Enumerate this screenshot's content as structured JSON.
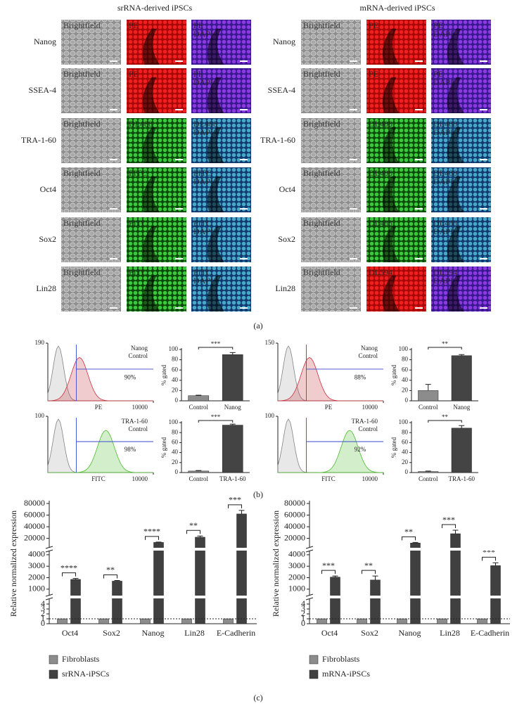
{
  "panel_a": {
    "label": "(a)",
    "groups": [
      {
        "title": "srRNA-derived iPSCs",
        "rows": [
          {
            "marker": "Nanog",
            "cells": [
              [
                "Brightfield"
              ],
              [
                "PE"
              ],
              [
                "PE",
                "DAPI"
              ]
            ]
          },
          {
            "marker": "SSEA-4",
            "cells": [
              [
                "Brightfield"
              ],
              [
                "PE"
              ],
              [
                "PE",
                "DAPI"
              ]
            ]
          },
          {
            "marker": "TRA-1-60",
            "cells": [
              [
                "Brightfield"
              ],
              [
                "DL488"
              ],
              [
                "DL488",
                "DAPI"
              ]
            ]
          },
          {
            "marker": "Oct4",
            "cells": [
              [
                "Brightfield"
              ],
              [
                "FITC"
              ],
              [
                "FITC",
                "DAPI"
              ]
            ]
          },
          {
            "marker": "Sox2",
            "cells": [
              [
                "Brightfield"
              ],
              [
                "FITC"
              ],
              [
                "FITC",
                "DAPI"
              ]
            ]
          },
          {
            "marker": "Lin28",
            "cells": [
              [
                "Brightfield"
              ],
              [
                "FITC"
              ],
              [
                "FITC",
                "DAPI"
              ]
            ]
          }
        ]
      },
      {
        "title": "mRNA-derived iPSCs",
        "rows": [
          {
            "marker": "Nanog",
            "cells": [
              [
                "Brightfield"
              ],
              [
                "PE"
              ],
              [
                "PE",
                "DAPI"
              ]
            ]
          },
          {
            "marker": "SSEA-4",
            "cells": [
              [
                "Brightfield"
              ],
              [
                "PE"
              ],
              [
                "PE",
                "DAPI"
              ]
            ]
          },
          {
            "marker": "TRA-1-60",
            "cells": [
              [
                "Brightfield"
              ],
              [
                "DL488"
              ],
              [
                "DL488",
                "DAPI"
              ]
            ]
          },
          {
            "marker": "Oct4",
            "cells": [
              [
                "Brightfield"
              ],
              [
                "DL488"
              ],
              [
                "DL488",
                "DAPI"
              ]
            ]
          },
          {
            "marker": "Sox2",
            "cells": [
              [
                "Brightfield"
              ],
              [
                "DL488"
              ],
              [
                "DL488",
                "DAPI"
              ]
            ]
          },
          {
            "marker": "Lin28",
            "cells": [
              [
                "Brightfield"
              ],
              [
                "DL594"
              ],
              [
                "DL594",
                "DAPI"
              ]
            ]
          }
        ]
      }
    ]
  },
  "panel_b": {
    "label": "(b)",
    "charts": [
      {
        "type": "histogram",
        "series": [
          {
            "name": "Nanog",
            "color": "#c8323c"
          },
          {
            "name": "Control",
            "color": "#777777"
          }
        ],
        "gated": "90%",
        "xlabel": "PE",
        "ylim": [
          0,
          190
        ],
        "yticks": [
          190
        ],
        "xlim": [
          1,
          10000
        ],
        "xticks": [
          10000
        ],
        "log_x": true
      },
      {
        "type": "bar",
        "categories": [
          "Control",
          "Nanog"
        ],
        "values": [
          10,
          90
        ],
        "errors": [
          1,
          4
        ],
        "colors": [
          "#8c8c8c",
          "#444444"
        ],
        "ylabel": "% gated",
        "ylim": [
          0,
          100
        ],
        "yticks": [
          0,
          20,
          40,
          60,
          80,
          100
        ],
        "significance": "***"
      },
      {
        "type": "histogram",
        "series": [
          {
            "name": "Nanog",
            "color": "#c8323c"
          },
          {
            "name": "Control",
            "color": "#777777"
          }
        ],
        "gated": "88%",
        "xlabel": "PE",
        "ylim": [
          0,
          150
        ],
        "yticks": [
          150
        ],
        "xlim": [
          1,
          10000
        ],
        "xticks": [
          10000
        ],
        "log_x": true
      },
      {
        "type": "bar",
        "categories": [
          "Control",
          "Nanog"
        ],
        "values": [
          20,
          88
        ],
        "errors": [
          12,
          2
        ],
        "colors": [
          "#8c8c8c",
          "#444444"
        ],
        "ylabel": "% gated",
        "ylim": [
          0,
          100
        ],
        "yticks": [
          0,
          20,
          40,
          60,
          80,
          100
        ],
        "significance": "**"
      },
      {
        "type": "histogram",
        "series": [
          {
            "name": "TRA-1-60",
            "color": "#4cbb2c"
          },
          {
            "name": "Control",
            "color": "#777777"
          }
        ],
        "gated": "98%",
        "xlabel": "FITC",
        "ylim": [
          0,
          100
        ],
        "yticks": [
          100
        ],
        "xlim": [
          1,
          10000
        ],
        "xticks": [
          10000
        ],
        "log_x": true
      },
      {
        "type": "bar",
        "categories": [
          "Control",
          "TRA-1-60"
        ],
        "values": [
          3,
          95
        ],
        "errors": [
          1,
          2
        ],
        "colors": [
          "#8c8c8c",
          "#444444"
        ],
        "ylabel": "% gated",
        "ylim": [
          0,
          100
        ],
        "yticks": [
          0,
          20,
          40,
          60,
          80,
          100
        ],
        "significance": "***"
      },
      {
        "type": "histogram",
        "series": [
          {
            "name": "TRA-1-60",
            "color": "#4cbb2c"
          },
          {
            "name": "Control",
            "color": "#777777"
          }
        ],
        "gated": "92%",
        "xlabel": "FITC",
        "ylim": [
          0,
          100
        ],
        "yticks": [
          100
        ],
        "xlim": [
          1,
          10000
        ],
        "xticks": [
          10000
        ],
        "log_x": true
      },
      {
        "type": "bar",
        "categories": [
          "Control",
          "TRA-1-60"
        ],
        "values": [
          2,
          89
        ],
        "errors": [
          1,
          5
        ],
        "colors": [
          "#8c8c8c",
          "#444444"
        ],
        "ylabel": "% gated",
        "ylim": [
          0,
          100
        ],
        "yticks": [
          0,
          20,
          40,
          60,
          80,
          100
        ],
        "significance": "**"
      }
    ]
  },
  "panel_c": {
    "label": "(c)",
    "charts": [
      {
        "type": "bar",
        "ylabel": "Relative normalized expression",
        "categories": [
          "Oct4",
          "Sox2",
          "Nanog",
          "Lin28",
          "E-Cadherin"
        ],
        "series": [
          {
            "name": "Fibroblasts",
            "color": "#8c8c8c",
            "values": [
              1,
              1,
              1,
              1,
              1
            ]
          },
          {
            "name": "srRNA-iPSCs",
            "color": "#404040",
            "values": [
              1850,
              1700,
              13000,
              22000,
              62000
            ],
            "errors": [
              80,
              60,
              600,
              2000,
              6000
            ]
          }
        ],
        "significance": [
          "****",
          "**",
          "****",
          "**",
          "***"
        ],
        "y_segments": [
          {
            "ylim": [
              0,
              5
            ],
            "yticks": [
              0,
              1,
              2,
              3,
              4
            ]
          },
          {
            "ylim": [
              500,
              4300
            ],
            "yticks": [
              1000,
              2000,
              3000,
              4000
            ]
          },
          {
            "ylim": [
              5000,
              80000
            ],
            "yticks": [
              20000,
              40000,
              60000,
              80000
            ]
          }
        ],
        "reference_line": 1
      },
      {
        "type": "bar",
        "ylabel": "Relative normalized expression",
        "categories": [
          "Oct4",
          "Sox2",
          "Nanog",
          "Lin28",
          "E-Cadherin"
        ],
        "series": [
          {
            "name": "Fibroblasts",
            "color": "#8c8c8c",
            "values": [
              1,
              1,
              1,
              1,
              1
            ]
          },
          {
            "name": "mRNA-iPSCs",
            "color": "#404040",
            "values": [
              2050,
              1800,
              12000,
              28000,
              3050
            ],
            "errors": [
              100,
              350,
              1000,
              6000,
              250
            ]
          }
        ],
        "significance": [
          "***",
          "**",
          "**",
          "***",
          "***"
        ],
        "y_segments": [
          {
            "ylim": [
              0,
              5
            ],
            "yticks": [
              0,
              1,
              2,
              3,
              4
            ]
          },
          {
            "ylim": [
              500,
              4300
            ],
            "yticks": [
              1000,
              2000,
              3000,
              4000
            ]
          },
          {
            "ylim": [
              5000,
              80000
            ],
            "yticks": [
              20000,
              40000,
              60000,
              80000
            ]
          }
        ],
        "reference_line": 1
      }
    ]
  }
}
